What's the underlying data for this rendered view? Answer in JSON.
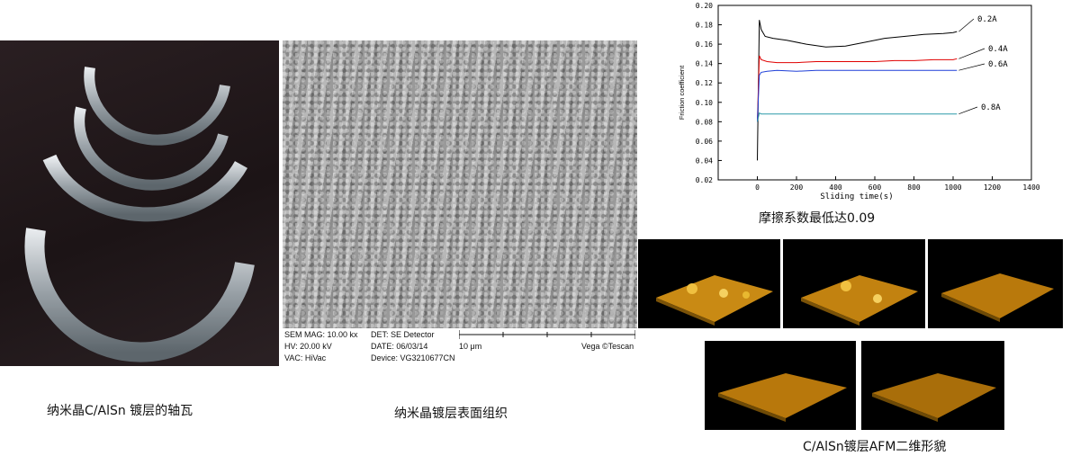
{
  "captions": {
    "bearing": "纳米晶C/AlSn 镀层的轴瓦",
    "sem": "纳米晶镀层表面组织",
    "friction": "摩擦系数最低达0.09",
    "afm": "C/AlSn镀层AFM二维形貌"
  },
  "sem_info": {
    "mag": "SEM MAG: 10.00 kx",
    "hv": "HV:  20.00 kV",
    "vac": "VAC: HiVac",
    "det": "DET: SE Detector",
    "date": "DATE: 06/03/14",
    "device": "Device: VG3210677CN",
    "scale": "10 μm",
    "brand": "Vega ©Tescan"
  },
  "colors": {
    "gold": "#c98a14",
    "black_series": "#000000",
    "red_series": "#e00000",
    "blue_series": "#1f3fd8",
    "cyan_series": "#2a9aa8"
  },
  "chart_data": {
    "type": "line",
    "title": "",
    "xlabel": "Sliding time(s)",
    "ylabel": "Friction coefficient",
    "xlim": [
      -200,
      1400
    ],
    "ylim": [
      0.02,
      0.2
    ],
    "xticks": [
      0,
      200,
      400,
      600,
      800,
      1000,
      1200,
      1400
    ],
    "yticks": [
      0.02,
      0.04,
      0.06,
      0.08,
      0.1,
      0.12,
      0.14,
      0.16,
      0.18,
      0.2
    ],
    "series": [
      {
        "name": "0.2A",
        "color": "#000000",
        "x": [
          0,
          10,
          20,
          40,
          80,
          150,
          250,
          350,
          450,
          550,
          650,
          750,
          850,
          950,
          1000,
          1020
        ],
        "y": [
          0.04,
          0.185,
          0.175,
          0.168,
          0.166,
          0.164,
          0.16,
          0.157,
          0.158,
          0.162,
          0.166,
          0.168,
          0.17,
          0.171,
          0.172,
          0.173
        ]
      },
      {
        "name": "0.4A",
        "color": "#e00000",
        "x": [
          0,
          10,
          20,
          50,
          100,
          200,
          300,
          400,
          500,
          600,
          700,
          800,
          900,
          1000,
          1020
        ],
        "y": [
          0.08,
          0.148,
          0.144,
          0.142,
          0.141,
          0.141,
          0.142,
          0.142,
          0.142,
          0.142,
          0.143,
          0.143,
          0.144,
          0.144,
          0.145
        ]
      },
      {
        "name": "0.6A",
        "color": "#1f3fd8",
        "x": [
          0,
          10,
          20,
          50,
          100,
          200,
          300,
          400,
          500,
          600,
          700,
          800,
          900,
          1000,
          1020
        ],
        "y": [
          0.08,
          0.128,
          0.131,
          0.132,
          0.133,
          0.132,
          0.133,
          0.133,
          0.133,
          0.133,
          0.133,
          0.133,
          0.133,
          0.133,
          0.133
        ]
      },
      {
        "name": "0.8A",
        "color": "#2a9aa8",
        "x": [
          0,
          10,
          20,
          100,
          200,
          400,
          600,
          800,
          1000,
          1020
        ],
        "y": [
          0.08,
          0.089,
          0.088,
          0.088,
          0.088,
          0.088,
          0.088,
          0.088,
          0.088,
          0.088
        ]
      }
    ]
  }
}
